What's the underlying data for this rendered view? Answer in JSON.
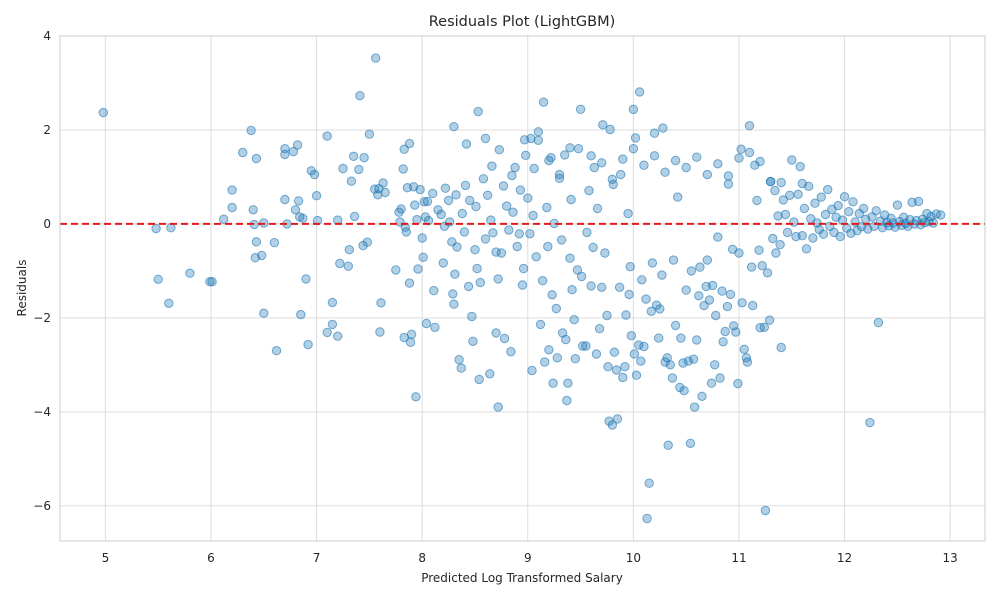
{
  "chart_data": {
    "type": "scatter",
    "title": "Residuals Plot (LightGBM)",
    "xlabel": "Predicted Log Transformed Salary",
    "ylabel": "Residuals",
    "xlim": [
      4.57,
      13.33
    ],
    "ylim": [
      -6.75,
      4.0
    ],
    "x_ticks": [
      5,
      6,
      7,
      8,
      9,
      10,
      11,
      12,
      13
    ],
    "y_ticks": [
      -6,
      -4,
      -2,
      0,
      2,
      4
    ],
    "grid": true,
    "point_color": "#1f77b4",
    "point_alpha": 0.35,
    "reference_line": {
      "y": 0,
      "color": "#e31a1c",
      "style": "dashed"
    },
    "points": [
      [
        4.98,
        2.37
      ],
      [
        5.48,
        -0.1
      ],
      [
        5.5,
        -1.18
      ],
      [
        5.62,
        -0.08
      ],
      [
        5.6,
        -1.69
      ],
      [
        5.8,
        -1.05
      ],
      [
        5.99,
        -1.23
      ],
      [
        6.01,
        -1.23
      ],
      [
        6.12,
        0.1
      ],
      [
        6.2,
        0.72
      ],
      [
        6.2,
        0.35
      ],
      [
        6.3,
        1.52
      ],
      [
        6.38,
        1.99
      ],
      [
        6.4,
        0.3
      ],
      [
        6.41,
        -0.01
      ],
      [
        6.42,
        -0.72
      ],
      [
        6.43,
        -0.38
      ],
      [
        6.43,
        1.39
      ],
      [
        6.48,
        -0.67
      ],
      [
        6.5,
        -1.9
      ],
      [
        6.5,
        0.02
      ],
      [
        6.6,
        -0.4
      ],
      [
        6.62,
        -2.7
      ],
      [
        6.7,
        1.6
      ],
      [
        6.7,
        0.52
      ],
      [
        6.72,
        0.0
      ],
      [
        6.7,
        1.48
      ],
      [
        6.78,
        1.54
      ],
      [
        6.8,
        0.3
      ],
      [
        6.82,
        1.68
      ],
      [
        6.83,
        0.49
      ],
      [
        6.84,
        0.15
      ],
      [
        6.85,
        -1.93
      ],
      [
        6.87,
        0.12
      ],
      [
        6.9,
        -1.17
      ],
      [
        6.92,
        -2.57
      ],
      [
        6.95,
        1.13
      ],
      [
        6.98,
        1.05
      ],
      [
        7.0,
        0.6
      ],
      [
        7.01,
        0.07
      ],
      [
        7.1,
        -2.31
      ],
      [
        7.1,
        1.87
      ],
      [
        7.15,
        -2.14
      ],
      [
        7.15,
        -1.67
      ],
      [
        7.2,
        -2.39
      ],
      [
        7.2,
        0.08
      ],
      [
        7.22,
        -0.84
      ],
      [
        7.25,
        1.18
      ],
      [
        7.3,
        -0.9
      ],
      [
        7.31,
        -0.55
      ],
      [
        7.33,
        0.91
      ],
      [
        7.35,
        1.44
      ],
      [
        7.36,
        0.16
      ],
      [
        7.4,
        1.16
      ],
      [
        7.41,
        2.73
      ],
      [
        7.44,
        -0.46
      ],
      [
        7.45,
        1.41
      ],
      [
        7.48,
        -0.39
      ],
      [
        7.5,
        1.91
      ],
      [
        7.55,
        0.74
      ],
      [
        7.56,
        3.53
      ],
      [
        7.58,
        0.62
      ],
      [
        7.59,
        0.75
      ],
      [
        7.6,
        -2.3
      ],
      [
        7.61,
        -1.68
      ],
      [
        7.63,
        0.87
      ],
      [
        7.65,
        0.67
      ],
      [
        7.75,
        -0.98
      ],
      [
        7.78,
        0.25
      ],
      [
        7.79,
        0.04
      ],
      [
        7.8,
        0.32
      ],
      [
        7.82,
        1.17
      ],
      [
        7.83,
        -2.42
      ],
      [
        7.83,
        1.59
      ],
      [
        7.84,
        -0.07
      ],
      [
        7.85,
        -0.17
      ],
      [
        7.86,
        0.77
      ],
      [
        7.88,
        -1.26
      ],
      [
        7.88,
        1.71
      ],
      [
        7.89,
        -2.52
      ],
      [
        7.9,
        -2.35
      ],
      [
        7.92,
        0.79
      ],
      [
        7.93,
        0.4
      ],
      [
        7.94,
        -3.68
      ],
      [
        7.95,
        0.09
      ],
      [
        7.96,
        -0.96
      ],
      [
        7.98,
        0.73
      ],
      [
        8.0,
        -0.3
      ],
      [
        8.01,
        -0.71
      ],
      [
        8.02,
        0.47
      ],
      [
        8.03,
        0.15
      ],
      [
        8.04,
        -2.12
      ],
      [
        8.05,
        0.48
      ],
      [
        8.06,
        0.07
      ],
      [
        8.1,
        0.65
      ],
      [
        8.11,
        -1.42
      ],
      [
        8.12,
        -2.2
      ],
      [
        8.15,
        0.3
      ],
      [
        8.18,
        0.2
      ],
      [
        8.2,
        -0.83
      ],
      [
        8.21,
        -0.05
      ],
      [
        8.22,
        0.76
      ],
      [
        8.25,
        0.5
      ],
      [
        8.26,
        0.04
      ],
      [
        8.28,
        -0.38
      ],
      [
        8.29,
        -1.49
      ],
      [
        8.3,
        2.07
      ],
      [
        8.3,
        -1.71
      ],
      [
        8.31,
        -1.07
      ],
      [
        8.32,
        0.62
      ],
      [
        8.33,
        -0.49
      ],
      [
        8.35,
        -2.89
      ],
      [
        8.37,
        -3.07
      ],
      [
        8.38,
        0.22
      ],
      [
        8.4,
        -0.17
      ],
      [
        8.41,
        0.82
      ],
      [
        8.42,
        1.7
      ],
      [
        8.44,
        -1.33
      ],
      [
        8.45,
        0.5
      ],
      [
        8.47,
        -1.97
      ],
      [
        8.48,
        -2.5
      ],
      [
        8.5,
        -0.55
      ],
      [
        8.51,
        0.37
      ],
      [
        8.52,
        -0.95
      ],
      [
        8.53,
        2.39
      ],
      [
        8.54,
        -3.31
      ],
      [
        8.55,
        -1.25
      ],
      [
        8.58,
        0.96
      ],
      [
        8.6,
        1.82
      ],
      [
        8.6,
        -0.32
      ],
      [
        8.62,
        0.61
      ],
      [
        8.64,
        -3.19
      ],
      [
        8.65,
        0.08
      ],
      [
        8.66,
        1.23
      ],
      [
        8.67,
        -0.19
      ],
      [
        8.7,
        -2.32
      ],
      [
        8.7,
        -0.6
      ],
      [
        8.72,
        -1.17
      ],
      [
        8.72,
        -3.9
      ],
      [
        8.73,
        1.58
      ],
      [
        8.75,
        -0.62
      ],
      [
        8.77,
        0.81
      ],
      [
        8.78,
        -2.44
      ],
      [
        8.8,
        0.38
      ],
      [
        8.82,
        -0.13
      ],
      [
        8.84,
        -2.72
      ],
      [
        8.85,
        1.03
      ],
      [
        8.86,
        0.25
      ],
      [
        8.88,
        1.2
      ],
      [
        8.9,
        -0.48
      ],
      [
        8.92,
        -0.21
      ],
      [
        8.93,
        0.72
      ],
      [
        8.95,
        -1.3
      ],
      [
        8.96,
        -0.95
      ],
      [
        8.97,
        1.79
      ],
      [
        8.98,
        1.46
      ],
      [
        9.0,
        0.55
      ],
      [
        9.02,
        -0.21
      ],
      [
        9.03,
        1.82
      ],
      [
        9.04,
        -3.12
      ],
      [
        9.05,
        0.18
      ],
      [
        9.06,
        1.18
      ],
      [
        9.08,
        -0.7
      ],
      [
        9.1,
        1.96
      ],
      [
        9.12,
        -2.14
      ],
      [
        9.14,
        -1.21
      ],
      [
        9.15,
        2.59
      ],
      [
        9.16,
        -2.94
      ],
      [
        9.18,
        0.35
      ],
      [
        9.19,
        -0.48
      ],
      [
        9.2,
        -2.68
      ],
      [
        9.22,
        1.41
      ],
      [
        9.23,
        -1.51
      ],
      [
        9.24,
        -3.39
      ],
      [
        9.25,
        0.01
      ],
      [
        9.27,
        -1.8
      ],
      [
        9.28,
        -2.85
      ],
      [
        9.3,
        0.97
      ],
      [
        9.32,
        -0.34
      ],
      [
        9.33,
        -2.32
      ],
      [
        9.35,
        1.47
      ],
      [
        9.36,
        -2.46
      ],
      [
        9.37,
        -3.76
      ],
      [
        9.38,
        -3.39
      ],
      [
        9.4,
        -0.73
      ],
      [
        9.41,
        0.52
      ],
      [
        9.42,
        -1.4
      ],
      [
        9.44,
        -2.04
      ],
      [
        9.45,
        -2.87
      ],
      [
        9.47,
        -0.98
      ],
      [
        9.48,
        1.6
      ],
      [
        9.5,
        2.44
      ],
      [
        9.51,
        -1.12
      ],
      [
        9.52,
        -2.6
      ],
      [
        9.55,
        -2.6
      ],
      [
        9.56,
        -0.18
      ],
      [
        9.58,
        0.71
      ],
      [
        9.6,
        -1.32
      ],
      [
        9.62,
        -0.5
      ],
      [
        9.63,
        1.2
      ],
      [
        9.65,
        -2.77
      ],
      [
        9.66,
        0.33
      ],
      [
        9.68,
        -2.23
      ],
      [
        9.7,
        -1.35
      ],
      [
        9.71,
        2.11
      ],
      [
        9.73,
        -0.62
      ],
      [
        9.75,
        -1.95
      ],
      [
        9.76,
        -3.04
      ],
      [
        9.77,
        -4.2
      ],
      [
        9.78,
        2.01
      ],
      [
        9.8,
        -4.28
      ],
      [
        9.81,
        0.84
      ],
      [
        9.82,
        -2.73
      ],
      [
        9.84,
        -3.11
      ],
      [
        9.85,
        -4.15
      ],
      [
        9.87,
        -1.35
      ],
      [
        9.88,
        1.05
      ],
      [
        9.9,
        -3.27
      ],
      [
        9.92,
        -3.04
      ],
      [
        9.93,
        -1.94
      ],
      [
        9.95,
        0.22
      ],
      [
        9.96,
        -1.5
      ],
      [
        9.97,
        -0.91
      ],
      [
        9.98,
        -2.38
      ],
      [
        10.0,
        2.44
      ],
      [
        10.01,
        -2.77
      ],
      [
        10.02,
        1.83
      ],
      [
        10.03,
        -3.22
      ],
      [
        10.05,
        -2.58
      ],
      [
        10.06,
        2.81
      ],
      [
        10.07,
        -2.92
      ],
      [
        10.08,
        -1.19
      ],
      [
        10.1,
        -2.61
      ],
      [
        10.12,
        -1.6
      ],
      [
        10.13,
        -6.27
      ],
      [
        10.15,
        -5.52
      ],
      [
        10.17,
        -1.86
      ],
      [
        10.18,
        -0.83
      ],
      [
        10.2,
        1.93
      ],
      [
        10.22,
        -1.73
      ],
      [
        10.24,
        -2.43
      ],
      [
        10.25,
        -1.81
      ],
      [
        10.27,
        -1.09
      ],
      [
        10.28,
        2.04
      ],
      [
        10.3,
        -2.94
      ],
      [
        10.32,
        -2.85
      ],
      [
        10.33,
        -4.71
      ],
      [
        10.35,
        -3.0
      ],
      [
        10.37,
        -3.28
      ],
      [
        10.38,
        -0.77
      ],
      [
        10.4,
        -2.16
      ],
      [
        10.42,
        0.57
      ],
      [
        10.44,
        -3.48
      ],
      [
        10.45,
        -2.43
      ],
      [
        10.47,
        -2.96
      ],
      [
        10.48,
        -3.55
      ],
      [
        10.5,
        -1.41
      ],
      [
        10.52,
        -2.92
      ],
      [
        10.54,
        -4.67
      ],
      [
        10.55,
        -1.0
      ],
      [
        10.57,
        -2.88
      ],
      [
        10.58,
        -3.9
      ],
      [
        10.6,
        -2.47
      ],
      [
        10.62,
        -1.53
      ],
      [
        10.63,
        -0.92
      ],
      [
        10.65,
        -3.67
      ],
      [
        10.67,
        -1.74
      ],
      [
        10.69,
        -1.33
      ],
      [
        10.7,
        -0.77
      ],
      [
        10.72,
        -1.62
      ],
      [
        10.74,
        -3.39
      ],
      [
        10.75,
        -1.31
      ],
      [
        10.77,
        -3.0
      ],
      [
        10.78,
        -1.95
      ],
      [
        10.8,
        -0.28
      ],
      [
        10.82,
        -3.28
      ],
      [
        10.84,
        -1.43
      ],
      [
        10.85,
        -2.51
      ],
      [
        10.87,
        -2.29
      ],
      [
        10.89,
        -1.76
      ],
      [
        10.9,
        1.02
      ],
      [
        10.92,
        -1.5
      ],
      [
        10.94,
        -0.54
      ],
      [
        10.95,
        -2.17
      ],
      [
        10.97,
        -2.3
      ],
      [
        10.99,
        -3.4
      ],
      [
        11.0,
        -0.62
      ],
      [
        11.02,
        1.59
      ],
      [
        11.03,
        -1.68
      ],
      [
        11.05,
        -2.67
      ],
      [
        11.07,
        -2.85
      ],
      [
        11.08,
        -2.94
      ],
      [
        11.1,
        2.09
      ],
      [
        11.12,
        -0.92
      ],
      [
        11.13,
        -1.74
      ],
      [
        11.15,
        1.25
      ],
      [
        11.17,
        0.5
      ],
      [
        11.19,
        -0.56
      ],
      [
        11.2,
        -2.21
      ],
      [
        11.22,
        -0.89
      ],
      [
        11.24,
        -2.2
      ],
      [
        11.25,
        -6.1
      ],
      [
        11.27,
        -1.04
      ],
      [
        11.29,
        -2.05
      ],
      [
        11.3,
        0.9
      ],
      [
        11.32,
        -0.31
      ],
      [
        11.34,
        0.71
      ],
      [
        11.35,
        -0.62
      ],
      [
        11.37,
        0.17
      ],
      [
        11.39,
        -0.44
      ],
      [
        11.4,
        -2.63
      ],
      [
        11.42,
        0.51
      ],
      [
        11.44,
        0.2
      ],
      [
        11.46,
        -0.18
      ],
      [
        11.48,
        0.61
      ],
      [
        11.5,
        1.36
      ],
      [
        11.52,
        0.04
      ],
      [
        11.54,
        -0.27
      ],
      [
        11.56,
        0.63
      ],
      [
        11.58,
        1.22
      ],
      [
        11.6,
        -0.25
      ],
      [
        11.62,
        0.33
      ],
      [
        11.64,
        -0.53
      ],
      [
        11.66,
        0.8
      ],
      [
        11.68,
        0.11
      ],
      [
        11.7,
        -0.3
      ],
      [
        11.72,
        0.44
      ],
      [
        11.74,
        0.02
      ],
      [
        11.76,
        -0.12
      ],
      [
        11.78,
        0.57
      ],
      [
        11.8,
        -0.22
      ],
      [
        11.82,
        0.2
      ],
      [
        11.84,
        0.73
      ],
      [
        11.86,
        -0.05
      ],
      [
        11.88,
        0.31
      ],
      [
        11.9,
        -0.18
      ],
      [
        11.92,
        0.14
      ],
      [
        11.94,
        0.39
      ],
      [
        11.96,
        -0.27
      ],
      [
        11.98,
        0.08
      ],
      [
        12.0,
        0.58
      ],
      [
        12.02,
        -0.09
      ],
      [
        12.04,
        0.26
      ],
      [
        12.06,
        -0.2
      ],
      [
        12.08,
        0.47
      ],
      [
        12.1,
        0.04
      ],
      [
        12.12,
        -0.14
      ],
      [
        12.14,
        0.22
      ],
      [
        12.16,
        -0.06
      ],
      [
        12.18,
        0.33
      ],
      [
        12.2,
        0.1
      ],
      [
        12.22,
        -0.11
      ],
      [
        12.24,
        -4.23
      ],
      [
        12.26,
        0.15
      ],
      [
        12.28,
        -0.05
      ],
      [
        12.3,
        0.28
      ],
      [
        12.32,
        -2.1
      ],
      [
        12.34,
        0.06
      ],
      [
        12.36,
        -0.08
      ],
      [
        12.38,
        0.19
      ],
      [
        12.4,
        0.03
      ],
      [
        12.42,
        -0.04
      ],
      [
        12.44,
        0.12
      ],
      [
        12.46,
        0.02
      ],
      [
        12.48,
        -0.07
      ],
      [
        12.5,
        0.4
      ],
      [
        12.52,
        0.05
      ],
      [
        12.54,
        -0.03
      ],
      [
        12.56,
        0.14
      ],
      [
        12.58,
        0.01
      ],
      [
        12.6,
        -0.05
      ],
      [
        12.62,
        0.09
      ],
      [
        12.64,
        0.46
      ],
      [
        12.66,
        0.0
      ],
      [
        12.68,
        0.07
      ],
      [
        12.7,
        0.48
      ],
      [
        12.72,
        -0.02
      ],
      [
        12.74,
        0.1
      ],
      [
        12.76,
        0.03
      ],
      [
        12.78,
        0.22
      ],
      [
        12.8,
        0.05
      ],
      [
        12.82,
        0.16
      ],
      [
        12.84,
        0.02
      ],
      [
        12.87,
        0.21
      ],
      [
        12.91,
        0.19
      ],
      [
        9.1,
        1.78
      ],
      [
        9.2,
        1.35
      ],
      [
        9.3,
        1.05
      ],
      [
        9.4,
        1.62
      ],
      [
        9.6,
        1.45
      ],
      [
        9.7,
        1.3
      ],
      [
        9.8,
        0.95
      ],
      [
        9.9,
        1.38
      ],
      [
        10.0,
        1.6
      ],
      [
        10.1,
        1.25
      ],
      [
        10.2,
        1.45
      ],
      [
        10.3,
        1.1
      ],
      [
        10.4,
        1.35
      ],
      [
        10.5,
        1.2
      ],
      [
        10.6,
        1.42
      ],
      [
        10.7,
        1.05
      ],
      [
        10.8,
        1.28
      ],
      [
        10.9,
        0.85
      ],
      [
        11.0,
        1.4
      ],
      [
        11.1,
        1.52
      ],
      [
        11.2,
        1.33
      ],
      [
        11.3,
        0.9
      ],
      [
        11.4,
        0.88
      ],
      [
        11.6,
        0.86
      ]
    ]
  }
}
